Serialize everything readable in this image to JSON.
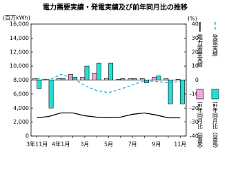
{
  "chart_data": {
    "type": "bar-line",
    "title": "電力需要実績・発電実績及び前年同月比の推移",
    "y_label": "(百万kWh)",
    "y2_label": "(%)",
    "categories": [
      "3年11月",
      null,
      "4年1月",
      null,
      "3月",
      null,
      "5月",
      null,
      "7月",
      null,
      "9月",
      null,
      "11月"
    ],
    "ylim": [
      0,
      16000
    ],
    "yticks": [
      0,
      {
        "value": 2000,
        "label": "2,000"
      },
      {
        "value": 4000,
        "label": "4,000"
      },
      {
        "value": 6000,
        "label": "6,000"
      },
      {
        "value": 8000,
        "label": "8,000"
      },
      {
        "value": 10000,
        "label": "10,000"
      },
      {
        "value": 12000,
        "label": "12,000"
      },
      {
        "value": 14000,
        "label": "14,000"
      },
      {
        "value": 16000,
        "label": "16,000"
      }
    ],
    "y2lim": [
      -40,
      40
    ],
    "y2ticks": [
      -40,
      -30,
      -20,
      -10,
      0,
      10,
      20,
      30,
      40
    ],
    "series": [
      {
        "name": "電力需要実績",
        "kind": "line",
        "color": "#000000",
        "dashed": false,
        "values": [
          2600,
          2800,
          3300,
          3300,
          2900,
          2700,
          2600,
          2700,
          3100,
          3300,
          3000,
          2600,
          2600
        ]
      },
      {
        "name": "発電実績",
        "kind": "line",
        "color": "#1ab2d8",
        "dashed": true,
        "values": [
          8200,
          8000,
          8800,
          8300,
          7200,
          6500,
          6200,
          6700,
          7300,
          7900,
          7800,
          7600,
          7800
        ]
      },
      {
        "name": "前年同月比（需要）",
        "kind": "bar",
        "axis": "y2",
        "color": "#f4a6e0",
        "values": [
          1,
          0.5,
          1,
          4,
          2,
          5,
          1,
          0.5,
          1,
          1,
          2,
          1,
          0.5
        ]
      },
      {
        "name": "前年同月比（発電）",
        "kind": "bar",
        "axis": "y2",
        "color": "#22e0d8",
        "values": [
          -6,
          -20,
          1,
          2,
          10,
          12,
          12,
          1,
          1,
          -2,
          3,
          -17,
          -17
        ]
      }
    ]
  }
}
